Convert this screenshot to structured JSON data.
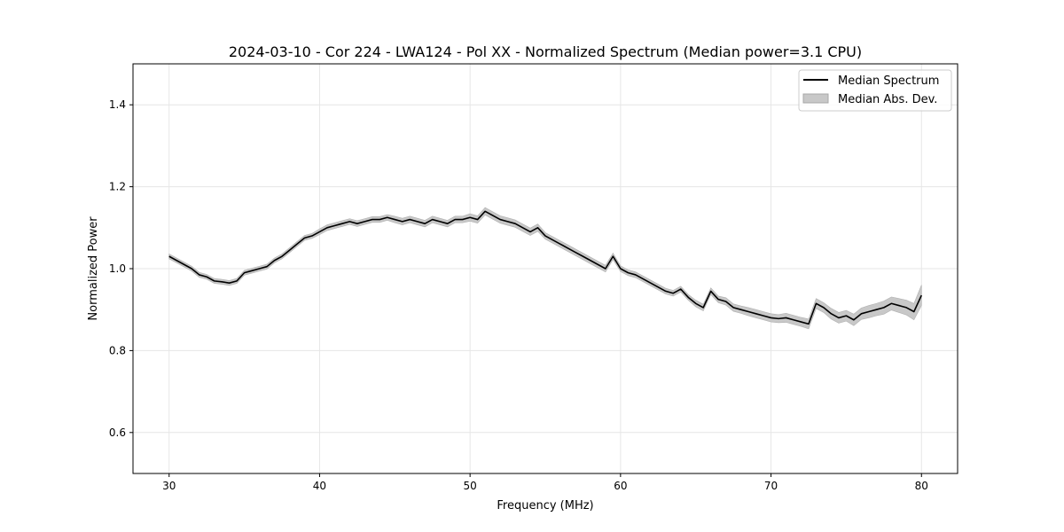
{
  "chart_data": {
    "type": "line",
    "title": "2024-03-10 - Cor 224 - LWA124 - Pol XX - Normalized Spectrum (Median power=3.1 CPU)",
    "xlabel": "Frequency (MHz)",
    "ylabel": "Normalized Power",
    "xlim": [
      27.6,
      82.4
    ],
    "ylim": [
      0.5,
      1.5
    ],
    "xticks": [
      30,
      40,
      50,
      60,
      70,
      80
    ],
    "yticks": [
      0.6,
      0.8,
      1.0,
      1.2,
      1.4
    ],
    "grid": true,
    "legend_position": "top-right",
    "series": [
      {
        "name": "Median Spectrum",
        "kind": "line",
        "color": "#000000",
        "x": [
          30.0,
          30.5,
          31.0,
          31.5,
          32.0,
          32.5,
          33.0,
          33.5,
          34.0,
          34.5,
          35.0,
          35.5,
          36.0,
          36.5,
          37.0,
          37.5,
          38.0,
          38.5,
          39.0,
          39.5,
          40.0,
          40.5,
          41.0,
          41.5,
          42.0,
          42.5,
          43.0,
          43.5,
          44.0,
          44.5,
          45.0,
          45.5,
          46.0,
          46.5,
          47.0,
          47.5,
          48.0,
          48.5,
          49.0,
          49.5,
          50.0,
          50.5,
          51.0,
          51.5,
          52.0,
          52.5,
          53.0,
          53.5,
          54.0,
          54.5,
          55.0,
          55.5,
          56.0,
          56.5,
          57.0,
          57.5,
          58.0,
          58.5,
          59.0,
          59.5,
          60.0,
          60.5,
          61.0,
          61.5,
          62.0,
          62.5,
          63.0,
          63.5,
          64.0,
          64.5,
          65.0,
          65.5,
          66.0,
          66.5,
          67.0,
          67.5,
          68.0,
          68.5,
          69.0,
          69.5,
          70.0,
          70.5,
          71.0,
          71.5,
          72.0,
          72.5,
          73.0,
          73.5,
          74.0,
          74.5,
          75.0,
          75.5,
          76.0,
          76.5,
          77.0,
          77.5,
          78.0,
          78.5,
          79.0,
          79.5,
          80.0
        ],
        "values": [
          1.03,
          1.02,
          1.01,
          1.0,
          0.985,
          0.98,
          0.97,
          0.968,
          0.965,
          0.97,
          0.99,
          0.995,
          1.0,
          1.005,
          1.02,
          1.03,
          1.045,
          1.06,
          1.075,
          1.08,
          1.09,
          1.1,
          1.105,
          1.11,
          1.115,
          1.11,
          1.115,
          1.12,
          1.12,
          1.125,
          1.12,
          1.115,
          1.12,
          1.115,
          1.11,
          1.12,
          1.115,
          1.11,
          1.12,
          1.12,
          1.125,
          1.12,
          1.14,
          1.13,
          1.12,
          1.115,
          1.11,
          1.1,
          1.09,
          1.1,
          1.08,
          1.07,
          1.06,
          1.05,
          1.04,
          1.03,
          1.02,
          1.01,
          1.0,
          1.03,
          1.0,
          0.99,
          0.985,
          0.975,
          0.965,
          0.955,
          0.945,
          0.94,
          0.95,
          0.93,
          0.915,
          0.905,
          0.945,
          0.925,
          0.92,
          0.905,
          0.9,
          0.895,
          0.89,
          0.885,
          0.88,
          0.878,
          0.88,
          0.875,
          0.87,
          0.865,
          0.915,
          0.905,
          0.89,
          0.88,
          0.885,
          0.875,
          0.89,
          0.895,
          0.9,
          0.905,
          0.915,
          0.91,
          0.905,
          0.895,
          0.935
        ]
      },
      {
        "name": "Median Abs. Dev.",
        "kind": "band",
        "color": "#c8c8c8",
        "half_width": [
          0.006,
          0.006,
          0.006,
          0.006,
          0.006,
          0.006,
          0.006,
          0.006,
          0.006,
          0.006,
          0.006,
          0.006,
          0.006,
          0.006,
          0.006,
          0.006,
          0.006,
          0.006,
          0.006,
          0.006,
          0.007,
          0.007,
          0.007,
          0.007,
          0.007,
          0.007,
          0.007,
          0.007,
          0.007,
          0.007,
          0.008,
          0.008,
          0.008,
          0.008,
          0.008,
          0.008,
          0.008,
          0.008,
          0.008,
          0.008,
          0.009,
          0.009,
          0.009,
          0.009,
          0.009,
          0.009,
          0.009,
          0.009,
          0.009,
          0.009,
          0.008,
          0.008,
          0.008,
          0.008,
          0.008,
          0.008,
          0.008,
          0.008,
          0.008,
          0.008,
          0.007,
          0.007,
          0.007,
          0.007,
          0.007,
          0.007,
          0.007,
          0.007,
          0.007,
          0.007,
          0.008,
          0.008,
          0.008,
          0.008,
          0.009,
          0.009,
          0.009,
          0.01,
          0.01,
          0.01,
          0.01,
          0.01,
          0.011,
          0.011,
          0.011,
          0.012,
          0.012,
          0.012,
          0.013,
          0.013,
          0.013,
          0.014,
          0.014,
          0.015,
          0.015,
          0.016,
          0.016,
          0.017,
          0.018,
          0.02,
          0.025
        ]
      }
    ]
  }
}
